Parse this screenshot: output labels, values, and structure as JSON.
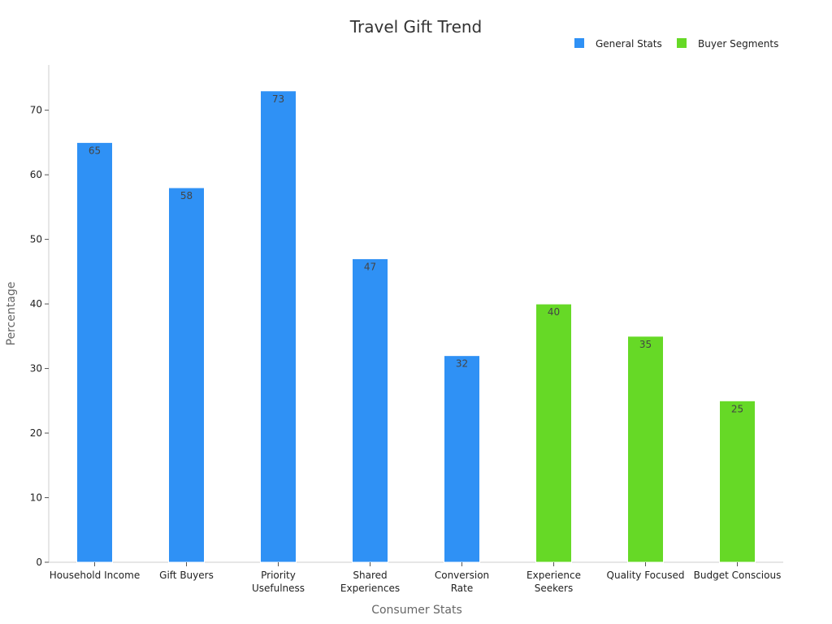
{
  "chart_data": {
    "type": "bar",
    "title": "Travel Gift Trend",
    "xlabel": "Consumer Stats",
    "ylabel": "Percentage",
    "ylim": [
      0,
      77
    ],
    "yticks": [
      0,
      10,
      20,
      30,
      40,
      50,
      60,
      70
    ],
    "grid": false,
    "legend_position": "top-right",
    "categories": [
      "Household Income",
      "Gift Buyers",
      "Priority Usefulness",
      "Shared Experiences",
      "Conversion Rate",
      "Experience Seekers",
      "Quality Focused",
      "Budget Conscious"
    ],
    "category_lines": [
      [
        "Household Income"
      ],
      [
        "Gift Buyers"
      ],
      [
        "Priority",
        "Usefulness"
      ],
      [
        "Shared",
        "Experiences"
      ],
      [
        "Conversion",
        "Rate"
      ],
      [
        "Experience",
        "Seekers"
      ],
      [
        "Quality Focused"
      ],
      [
        "Budget Conscious"
      ]
    ],
    "series": [
      {
        "name": "General Stats",
        "color": "#2f91f5",
        "values": [
          65,
          58,
          73,
          47,
          32,
          null,
          null,
          null
        ]
      },
      {
        "name": "Buyer Segments",
        "color": "#66d926",
        "values": [
          null,
          null,
          null,
          null,
          null,
          40,
          35,
          25
        ]
      }
    ]
  }
}
